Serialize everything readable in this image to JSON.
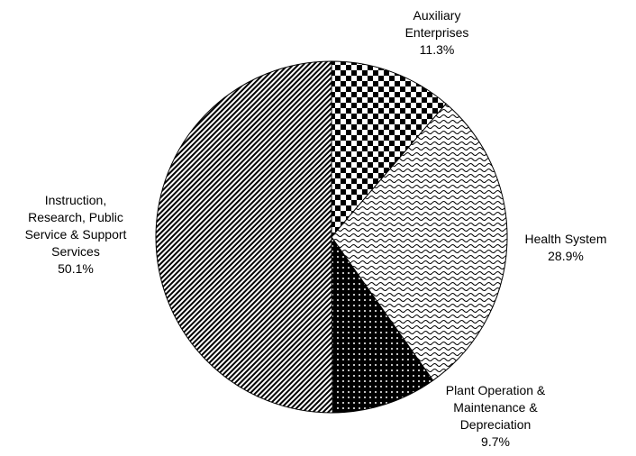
{
  "chart_data": {
    "type": "pie",
    "categories": [
      "Auxiliary Enterprises",
      "Health System",
      "Plant Operation & Maintenance & Depreciation",
      "Instruction, Research, Public Service & Support Services"
    ],
    "values": [
      11.3,
      28.9,
      9.7,
      50.1
    ],
    "value_labels": [
      "11.3%",
      "28.9%",
      "9.7%",
      "50.1%"
    ]
  }
}
